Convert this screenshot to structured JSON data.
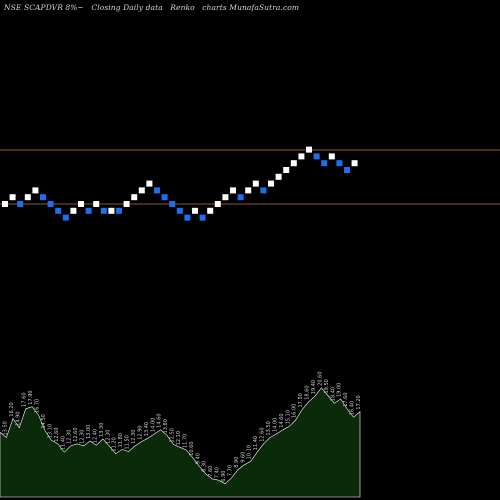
{
  "header": {
    "symbol": "NSE SCAPDVR 8%~",
    "closing": "Closing Daily data",
    "renko": "Renko",
    "charts": "charts MunafaSutra.com"
  },
  "colors": {
    "background": "#000000",
    "up_brick": "#ffffff",
    "down_brick": "#1e6ff0",
    "level_line": "#8b5a1e",
    "volume_fill": "#0a2a0a",
    "volume_stroke": "#ffffff"
  },
  "chart_data": {
    "type": "renko",
    "price_levels": [
      "upper",
      "lower"
    ],
    "bricks": [
      {
        "col": 0,
        "row": 0,
        "dir": "up"
      },
      {
        "col": 1,
        "row": 1,
        "dir": "up"
      },
      {
        "col": 2,
        "row": 0,
        "dir": "down"
      },
      {
        "col": 3,
        "row": 1,
        "dir": "up"
      },
      {
        "col": 4,
        "row": 2,
        "dir": "up"
      },
      {
        "col": 5,
        "row": 1,
        "dir": "down"
      },
      {
        "col": 6,
        "row": 0,
        "dir": "down"
      },
      {
        "col": 7,
        "row": -1,
        "dir": "down"
      },
      {
        "col": 8,
        "row": -2,
        "dir": "down"
      },
      {
        "col": 9,
        "row": -1,
        "dir": "up"
      },
      {
        "col": 10,
        "row": 0,
        "dir": "up"
      },
      {
        "col": 11,
        "row": -1,
        "dir": "down"
      },
      {
        "col": 12,
        "row": 0,
        "dir": "up"
      },
      {
        "col": 13,
        "row": -1,
        "dir": "down"
      },
      {
        "col": 14,
        "row": -1,
        "dir": "up"
      },
      {
        "col": 15,
        "row": -1,
        "dir": "down"
      },
      {
        "col": 16,
        "row": 0,
        "dir": "up"
      },
      {
        "col": 17,
        "row": 1,
        "dir": "up"
      },
      {
        "col": 18,
        "row": 2,
        "dir": "up"
      },
      {
        "col": 19,
        "row": 3,
        "dir": "up"
      },
      {
        "col": 20,
        "row": 2,
        "dir": "down"
      },
      {
        "col": 21,
        "row": 1,
        "dir": "down"
      },
      {
        "col": 22,
        "row": 0,
        "dir": "down"
      },
      {
        "col": 23,
        "row": -1,
        "dir": "down"
      },
      {
        "col": 24,
        "row": -2,
        "dir": "down"
      },
      {
        "col": 25,
        "row": -1,
        "dir": "up"
      },
      {
        "col": 26,
        "row": -2,
        "dir": "down"
      },
      {
        "col": 27,
        "row": -1,
        "dir": "up"
      },
      {
        "col": 28,
        "row": 0,
        "dir": "up"
      },
      {
        "col": 29,
        "row": 1,
        "dir": "up"
      },
      {
        "col": 30,
        "row": 2,
        "dir": "up"
      },
      {
        "col": 31,
        "row": 1,
        "dir": "down"
      },
      {
        "col": 32,
        "row": 2,
        "dir": "up"
      },
      {
        "col": 33,
        "row": 3,
        "dir": "up"
      },
      {
        "col": 34,
        "row": 2,
        "dir": "down"
      },
      {
        "col": 35,
        "row": 3,
        "dir": "up"
      },
      {
        "col": 36,
        "row": 4,
        "dir": "up"
      },
      {
        "col": 37,
        "row": 5,
        "dir": "up"
      },
      {
        "col": 38,
        "row": 6,
        "dir": "up"
      },
      {
        "col": 39,
        "row": 7,
        "dir": "up"
      },
      {
        "col": 40,
        "row": 8,
        "dir": "up"
      },
      {
        "col": 41,
        "row": 7,
        "dir": "down"
      },
      {
        "col": 42,
        "row": 6,
        "dir": "down"
      },
      {
        "col": 43,
        "row": 7,
        "dir": "up"
      },
      {
        "col": 44,
        "row": 6,
        "dir": "down"
      },
      {
        "col": 45,
        "row": 5,
        "dir": "down"
      },
      {
        "col": 46,
        "row": 6,
        "dir": "up"
      }
    ],
    "volume": {
      "values": [
        14.25,
        13.5,
        16.2,
        14.9,
        17.6,
        17.9,
        16.7,
        14.5,
        13.1,
        12.6,
        11.4,
        12.3,
        12.6,
        12.3,
        13.0,
        12.4,
        13.3,
        12.3,
        11.2,
        11.8,
        11.5,
        12.3,
        12.9,
        13.4,
        14.0,
        14.6,
        13.8,
        12.5,
        12.1,
        11.7,
        10.6,
        9.4,
        8.3,
        7.6,
        7.4,
        6.9,
        7.7,
        8.9,
        9.6,
        10.1,
        11.4,
        12.6,
        13.5,
        14.0,
        14.6,
        15.1,
        16.0,
        17.5,
        18.6,
        19.4,
        20.6,
        19.5,
        18.4,
        19.0,
        17.6,
        16.4,
        17.2
      ],
      "labels": [
        "14.25",
        "13.50",
        "16.20",
        "14.90",
        "17.60",
        "17.90",
        "16.70",
        "14.50",
        "13.10",
        "12.60",
        "11.40",
        "12.30",
        "12.60",
        "12.30",
        "13.00",
        "12.40",
        "13.30",
        "12.30",
        "11.20",
        "11.80",
        "11.50",
        "12.30",
        "12.90",
        "13.40",
        "14.00",
        "14.60",
        "13.80",
        "12.50",
        "12.10",
        "11.70",
        "10.60",
        "9.40",
        "8.30",
        "7.60",
        "7.40",
        "6.90",
        "7.70",
        "8.90",
        "9.60",
        "10.10",
        "11.40",
        "12.60",
        "13.50",
        "14.00",
        "14.60",
        "15.10",
        "16.00",
        "17.50",
        "18.60",
        "19.40",
        "20.60",
        "19.50",
        "18.40",
        "19.00",
        "17.60",
        "16.40",
        "17.20"
      ]
    }
  }
}
